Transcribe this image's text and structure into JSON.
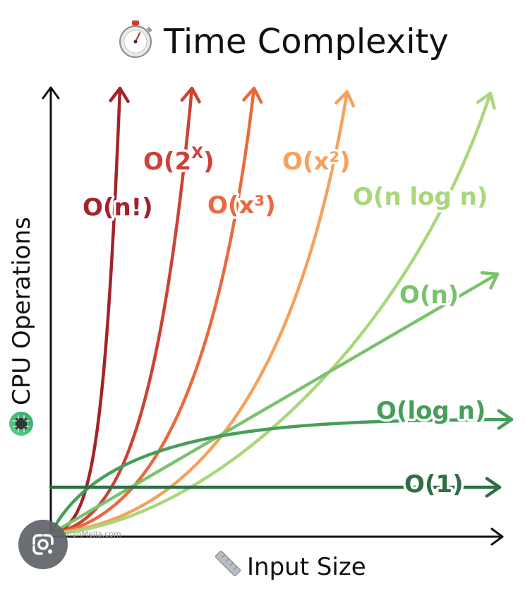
{
  "header": {
    "title": "Time Complexity",
    "title_icon": "stopwatch-icon"
  },
  "watermark": "AdrianMejia.com",
  "chart_data": {
    "type": "line",
    "title": "Time Complexity",
    "xlabel": "Input Size",
    "ylabel": "CPU Operations",
    "xlabel_icon": "ruler-icon",
    "ylabel_icon": "cpu-chip-icon",
    "ticks": "none",
    "grid": false,
    "legend": "none (labels placed next to each curve)",
    "series": [
      {
        "name": "O(n!)",
        "label_base": "O(n!)",
        "label_sup": "",
        "label_tail": "",
        "color": "#a3232b"
      },
      {
        "name": "O(2^X)",
        "label_base": "O(2",
        "label_sup": "X",
        "label_tail": ")",
        "color": "#cc4236"
      },
      {
        "name": "O(x³)",
        "label_base": "O(x³)",
        "label_sup": "",
        "label_tail": "",
        "color": "#e96a3e"
      },
      {
        "name": "O(x²)",
        "label_base": "O(x²)",
        "label_sup": "",
        "label_tail": "",
        "color": "#f5a15d"
      },
      {
        "name": "O(n log n)",
        "label_base": "O(n log n)",
        "label_sup": "",
        "label_tail": "",
        "color": "#a9d77a"
      },
      {
        "name": "O(n)",
        "label_base": "O(n)",
        "label_sup": "",
        "label_tail": "",
        "color": "#7bc26c"
      },
      {
        "name": "O(log n)",
        "label_base": "O(log n)",
        "label_sup": "",
        "label_tail": "",
        "color": "#479e5a"
      },
      {
        "name": "O(1)",
        "label_base": "O(1)",
        "label_sup": "",
        "label_tail": "",
        "color": "#2f6f45"
      }
    ]
  },
  "overlay": {
    "lens_button_icon": "google-lens-icon"
  }
}
